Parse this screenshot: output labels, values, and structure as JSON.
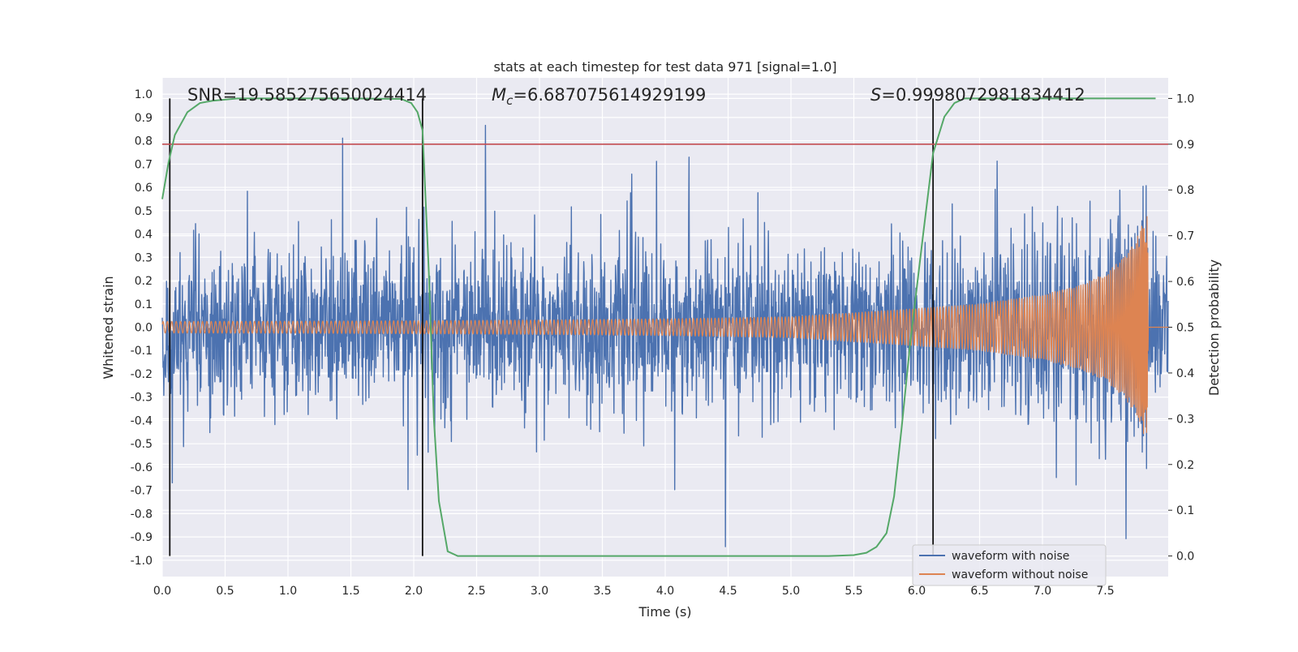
{
  "chart_data": {
    "type": "line",
    "title": "stats at each timestep for test data 971 [signal=1.0]",
    "xlabel": "Time (s)",
    "ylabel": "Whitened strain",
    "ylabel_right": "Detection probability",
    "xlim": [
      0.0,
      8.0
    ],
    "ylim": [
      -1.07,
      1.07
    ],
    "ylim_right": [
      -0.045,
      1.045
    ],
    "x_ticks": [
      "0.0",
      "0.5",
      "1.0",
      "1.5",
      "2.0",
      "2.5",
      "3.0",
      "3.5",
      "4.0",
      "4.5",
      "5.0",
      "5.5",
      "6.0",
      "6.5",
      "7.0",
      "7.5"
    ],
    "y_ticks": [
      "-1.0",
      "-0.9",
      "-0.8",
      "-0.7",
      "-0.6",
      "-0.5",
      "-0.4",
      "-0.3",
      "-0.2",
      "-0.1",
      "0.0",
      "0.1",
      "0.2",
      "0.3",
      "0.4",
      "0.5",
      "0.6",
      "0.7",
      "0.8",
      "0.9",
      "1.0"
    ],
    "y_ticks_right": [
      "0.0",
      "0.1",
      "0.2",
      "0.3",
      "0.4",
      "0.5",
      "0.6",
      "0.7",
      "0.8",
      "0.9",
      "1.0"
    ],
    "annotations": {
      "snr": "SNR=19.585275650024414",
      "mc_symbol": "M",
      "mc_sub": "c",
      "mc_value": "=6.687075614929199",
      "s_symbol": "S",
      "s_value": "=0.9998072981834412"
    },
    "threshold": 0.9,
    "vertical_markers_s": [
      0.06,
      2.07,
      6.13
    ],
    "legend": {
      "location": "lower-right",
      "entries": [
        "waveform with noise",
        "waveform without noise"
      ]
    },
    "series": [
      {
        "name": "waveform with noise",
        "color": "#4c72b0",
        "axis": "left",
        "description": "noisy whitened strain, roughly ±0.35 typical amplitude with spikes to ±1.0 over 0–8 s"
      },
      {
        "name": "waveform without noise",
        "color": "#dd8452",
        "axis": "left",
        "envelope": {
          "t": [
            0.0,
            1.0,
            2.0,
            3.0,
            4.0,
            5.0,
            6.0,
            6.5,
            7.0,
            7.3,
            7.5,
            7.65,
            7.75,
            7.82,
            7.84
          ],
          "amp": [
            0.025,
            0.026,
            0.028,
            0.031,
            0.036,
            0.045,
            0.08,
            0.1,
            0.14,
            0.18,
            0.23,
            0.3,
            0.38,
            0.48,
            0.5
          ]
        }
      },
      {
        "name": "detection probability",
        "color": "#55a868",
        "axis": "right",
        "x": [
          0.0,
          0.05,
          0.1,
          0.2,
          0.3,
          0.4,
          0.6,
          1.0,
          1.5,
          1.9,
          1.98,
          2.03,
          2.07,
          2.12,
          2.16,
          2.2,
          2.27,
          2.35,
          2.5,
          3.5,
          4.5,
          5.3,
          5.5,
          5.6,
          5.68,
          5.76,
          5.82,
          5.88,
          5.95,
          6.05,
          6.13,
          6.22,
          6.3,
          6.38,
          6.5,
          7.0,
          7.5,
          7.9
        ],
        "y": [
          0.78,
          0.86,
          0.92,
          0.97,
          0.99,
          0.995,
          1.0,
          1.0,
          1.0,
          0.999,
          0.99,
          0.97,
          0.93,
          0.62,
          0.3,
          0.12,
          0.01,
          0.0,
          0.0,
          0.0,
          0.0,
          0.0,
          0.002,
          0.007,
          0.02,
          0.05,
          0.13,
          0.28,
          0.47,
          0.7,
          0.88,
          0.96,
          0.99,
          1.0,
          1.0,
          1.0,
          1.0,
          1.0
        ]
      },
      {
        "name": "threshold",
        "color": "#c44e52",
        "axis": "right",
        "y": 0.9
      }
    ]
  }
}
